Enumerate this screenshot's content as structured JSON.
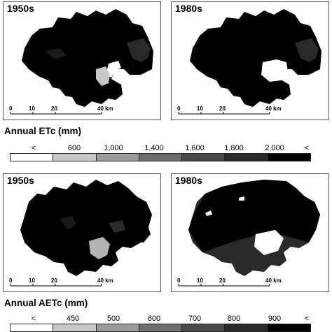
{
  "maps": [
    {
      "id": "etc-1950s",
      "title": "1950s"
    },
    {
      "id": "etc-1980s",
      "title": "1980s"
    },
    {
      "id": "aetc-1950s",
      "title": "1950s"
    },
    {
      "id": "aetc-1980s",
      "title": "1980s"
    }
  ],
  "scale_bar": {
    "labels": [
      "0",
      "10",
      "20",
      "40 km"
    ],
    "values_km": [
      0,
      10,
      20,
      40
    ]
  },
  "legend_etc": {
    "title": "Annual ETc (mm)",
    "labels": [
      "<",
      "600",
      "1,000",
      "1,400",
      "1,600",
      "1,800",
      "2,000",
      "<"
    ],
    "colors": [
      "#ffffff",
      "#c8c8c8",
      "#9a9a9a",
      "#6e6e6e",
      "#4a4a4a",
      "#2a2a2a",
      "#000000"
    ]
  },
  "legend_aetc": {
    "title": "Annual AETc (mm)",
    "labels": [
      "<",
      "450",
      "500",
      "600",
      "700",
      "800",
      "900",
      "<"
    ],
    "colors": [
      "#ffffff",
      "#c8c8c8",
      "#9a9a9a",
      "#6e6e6e",
      "#4a4a4a",
      "#2a2a2a",
      "#000000"
    ]
  }
}
